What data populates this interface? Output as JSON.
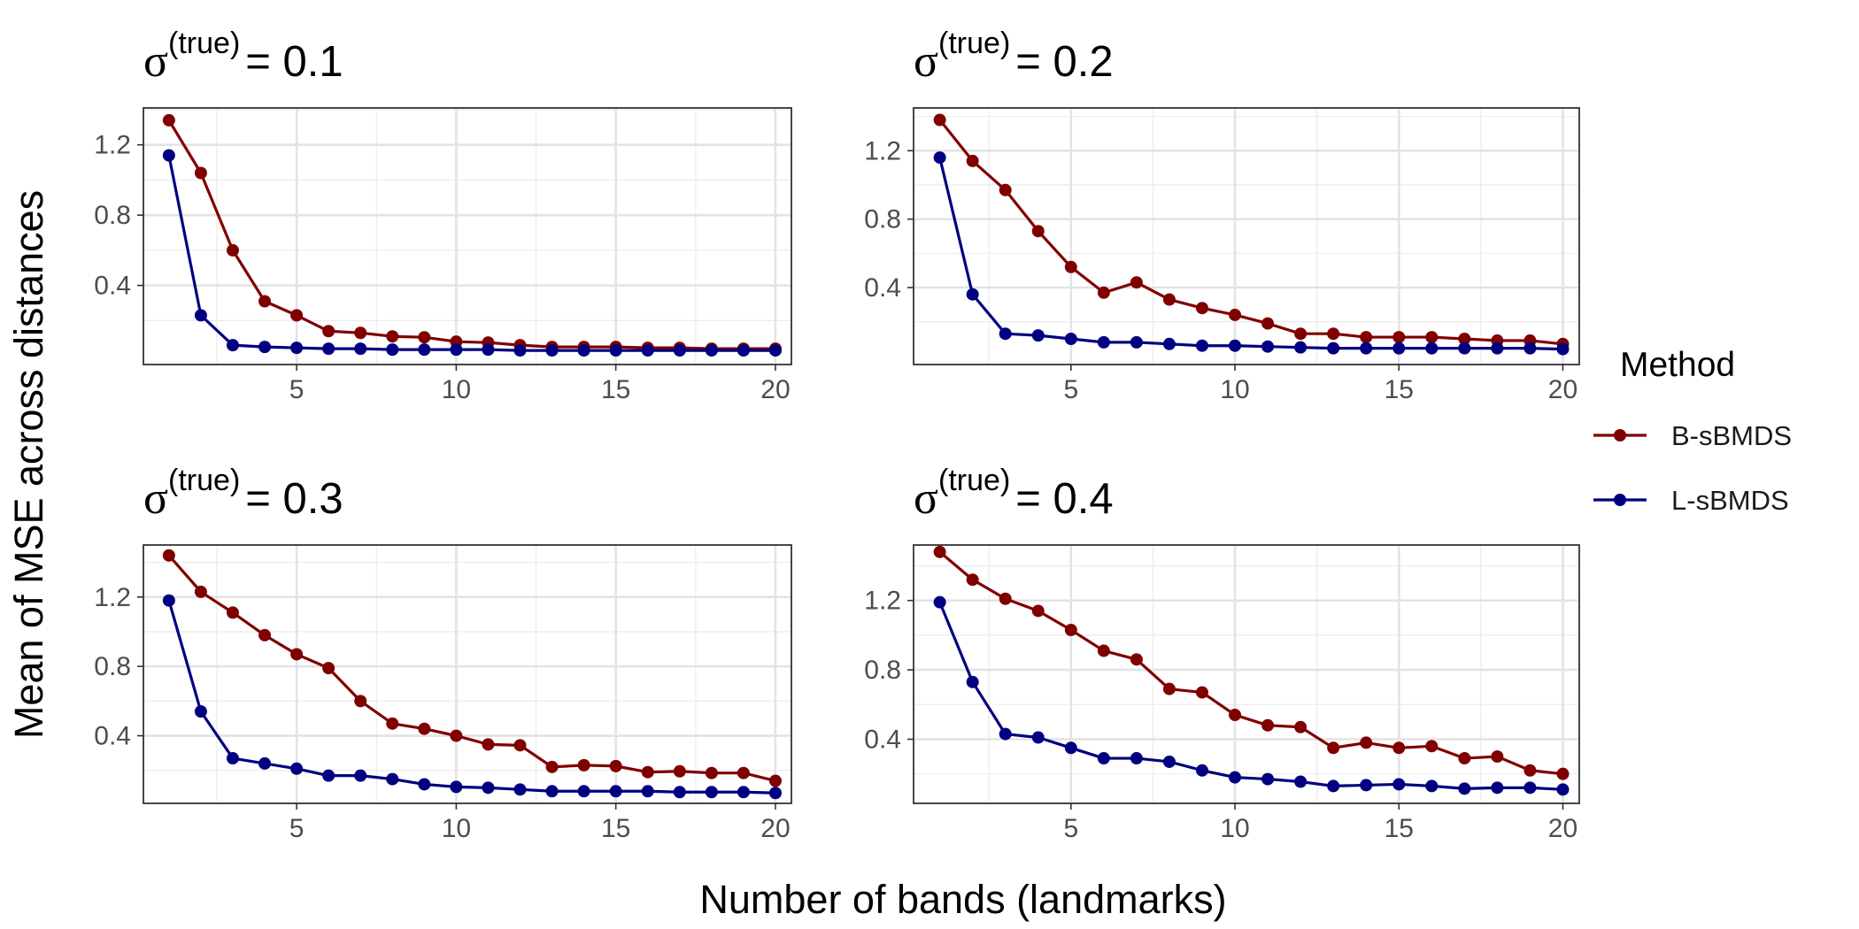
{
  "chart_data": {
    "type": "line",
    "xlabel": "Number of bands (landmarks)",
    "ylabel": "Mean of MSE across distances",
    "x": [
      1,
      2,
      3,
      4,
      5,
      6,
      7,
      8,
      9,
      10,
      11,
      12,
      13,
      14,
      15,
      16,
      17,
      18,
      19,
      20
    ],
    "x_ticks": [
      5,
      10,
      15,
      20
    ],
    "y_ticks": [
      0.4,
      0.8,
      1.2
    ],
    "xlim": [
      0.2,
      20.5
    ],
    "legend": {
      "title": "Method",
      "position": "right",
      "entries": [
        {
          "name": "B-sBMDS",
          "color": "#800000"
        },
        {
          "name": "L-sBMDS",
          "color": "#000080"
        }
      ]
    },
    "panels": [
      {
        "title_symbol": "σ",
        "title_superscript": "(true)",
        "title_value": "= 0.1",
        "ylim": [
          -0.05,
          1.41
        ],
        "series": [
          {
            "name": "B-sBMDS",
            "values": [
              1.34,
              1.04,
              0.6,
              0.31,
              0.23,
              0.14,
              0.13,
              0.11,
              0.105,
              0.08,
              0.075,
              0.06,
              0.05,
              0.05,
              0.05,
              0.045,
              0.045,
              0.04,
              0.04,
              0.04
            ]
          },
          {
            "name": "L-sBMDS",
            "values": [
              1.14,
              0.23,
              0.06,
              0.05,
              0.045,
              0.04,
              0.04,
              0.035,
              0.035,
              0.035,
              0.035,
              0.03,
              0.03,
              0.03,
              0.03,
              0.03,
              0.03,
              0.03,
              0.03,
              0.03
            ]
          }
        ]
      },
      {
        "title_symbol": "σ",
        "title_superscript": "(true)",
        "title_value": "= 0.2",
        "ylim": [
          -0.05,
          1.45
        ],
        "series": [
          {
            "name": "B-sBMDS",
            "values": [
              1.38,
              1.14,
              0.97,
              0.73,
              0.52,
              0.37,
              0.43,
              0.33,
              0.28,
              0.24,
              0.19,
              0.13,
              0.13,
              0.11,
              0.11,
              0.11,
              0.1,
              0.09,
              0.09,
              0.07
            ]
          },
          {
            "name": "L-sBMDS",
            "values": [
              1.16,
              0.36,
              0.13,
              0.12,
              0.1,
              0.08,
              0.08,
              0.07,
              0.06,
              0.06,
              0.055,
              0.05,
              0.045,
              0.045,
              0.045,
              0.045,
              0.045,
              0.045,
              0.045,
              0.04
            ]
          }
        ]
      },
      {
        "title_symbol": "σ",
        "title_superscript": "(true)",
        "title_value": "= 0.3",
        "ylim": [
          0.01,
          1.5
        ],
        "series": [
          {
            "name": "B-sBMDS",
            "values": [
              1.44,
              1.23,
              1.11,
              0.98,
              0.87,
              0.79,
              0.6,
              0.47,
              0.44,
              0.4,
              0.35,
              0.345,
              0.22,
              0.23,
              0.225,
              0.19,
              0.195,
              0.185,
              0.185,
              0.14
            ]
          },
          {
            "name": "L-sBMDS",
            "values": [
              1.18,
              0.54,
              0.27,
              0.24,
              0.21,
              0.17,
              0.17,
              0.15,
              0.12,
              0.105,
              0.1,
              0.09,
              0.08,
              0.08,
              0.08,
              0.08,
              0.075,
              0.075,
              0.075,
              0.07
            ]
          }
        ]
      },
      {
        "title_symbol": "σ",
        "title_superscript": "(true)",
        "title_value": "= 0.4",
        "ylim": [
          0.03,
          1.52
        ],
        "series": [
          {
            "name": "B-sBMDS",
            "values": [
              1.48,
              1.32,
              1.21,
              1.14,
              1.03,
              0.91,
              0.86,
              0.69,
              0.67,
              0.54,
              0.48,
              0.47,
              0.35,
              0.38,
              0.35,
              0.36,
              0.29,
              0.3,
              0.22,
              0.2
            ]
          },
          {
            "name": "L-sBMDS",
            "values": [
              1.19,
              0.73,
              0.43,
              0.41,
              0.35,
              0.29,
              0.29,
              0.27,
              0.22,
              0.18,
              0.17,
              0.155,
              0.13,
              0.135,
              0.14,
              0.13,
              0.115,
              0.12,
              0.12,
              0.11
            ]
          }
        ]
      }
    ]
  }
}
